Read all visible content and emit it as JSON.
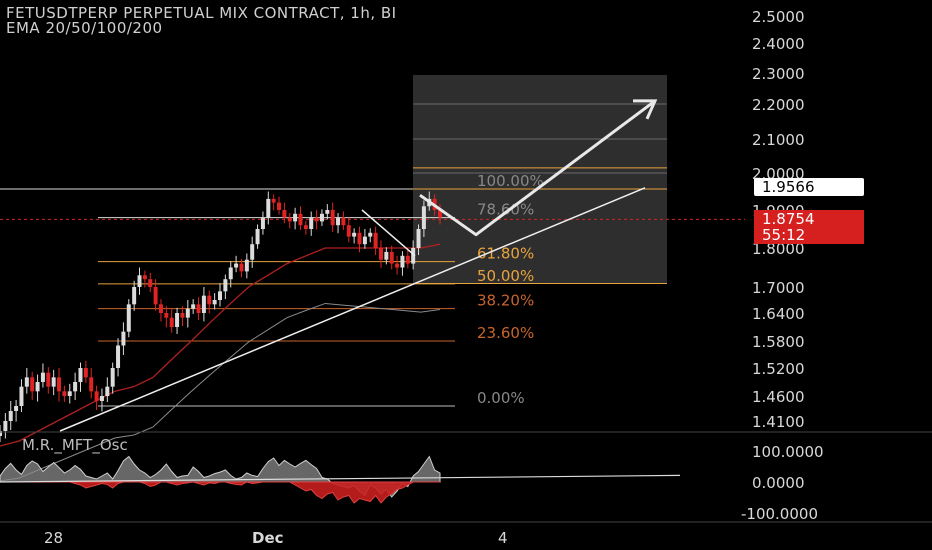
{
  "header": {
    "title": "FETUSDTPERP PERPETUAL MIX CONTRACT, 1h, BI",
    "subtitle": "EMA 20/50/100/200"
  },
  "price_tags": {
    "level": "1.9566",
    "last": "1.8754",
    "countdown": "55:12"
  },
  "colors": {
    "up": "#dcdcdc",
    "down": "#e02424",
    "fib_gold": "#e8a33c",
    "fib_orange": "#c8642c",
    "last_price_bg": "#d62020",
    "box": "#2e2e2e"
  },
  "chart_data": [
    {
      "type": "candlestick",
      "title": "FETUSDTPERP PERPETUAL MIX CONTRACT, 1h, BI",
      "subtitle": "EMA 20/50/100/200",
      "x_tick_labels": [
        "28",
        "Dec",
        "4"
      ],
      "y_tick_labels": [
        "2.5000",
        "2.4000",
        "2.3000",
        "2.2000",
        "2.1000",
        "2.0000",
        "1.9000",
        "1.8000",
        "1.7000",
        "1.6400",
        "1.5800",
        "1.5200",
        "1.4600",
        "1.4100"
      ],
      "ylim": [
        1.39,
        2.53
      ],
      "price_axis": [
        {
          "value": 2.5,
          "y": 16
        },
        {
          "value": 2.4,
          "y": 43
        },
        {
          "value": 2.3,
          "y": 73
        },
        {
          "value": 2.2,
          "y": 104
        },
        {
          "value": 2.1,
          "y": 139
        },
        {
          "value": 2.0,
          "y": 173
        },
        {
          "value": 1.9,
          "y": 210
        },
        {
          "value": 1.8,
          "y": 248
        },
        {
          "value": 1.7,
          "y": 287
        },
        {
          "value": 1.64,
          "y": 313
        },
        {
          "value": 1.58,
          "y": 341
        },
        {
          "value": 1.52,
          "y": 368
        },
        {
          "value": 1.46,
          "y": 396
        },
        {
          "value": 1.41,
          "y": 421
        }
      ],
      "series": [
        {
          "name": "close",
          "x_range": [
            0,
            440
          ],
          "values": [
            1.39,
            1.41,
            1.43,
            1.44,
            1.48,
            1.5,
            1.47,
            1.49,
            1.51,
            1.48,
            1.5,
            1.47,
            1.46,
            1.47,
            1.49,
            1.52,
            1.5,
            1.47,
            1.45,
            1.46,
            1.48,
            1.52,
            1.57,
            1.6,
            1.66,
            1.7,
            1.73,
            1.72,
            1.7,
            1.66,
            1.64,
            1.63,
            1.61,
            1.64,
            1.63,
            1.65,
            1.66,
            1.64,
            1.68,
            1.66,
            1.67,
            1.69,
            1.72,
            1.75,
            1.76,
            1.74,
            1.77,
            1.81,
            1.85,
            1.88,
            1.93,
            1.92,
            1.9,
            1.88,
            1.87,
            1.89,
            1.86,
            1.85,
            1.88,
            1.87,
            1.89,
            1.9,
            1.86,
            1.88,
            1.86,
            1.83,
            1.84,
            1.81,
            1.83,
            1.84,
            1.8,
            1.77,
            1.79,
            1.76,
            1.75,
            1.78,
            1.76,
            1.8,
            1.85,
            1.91,
            1.93,
            1.9,
            1.88
          ]
        },
        {
          "name": "ema",
          "x_range": [
            0,
            440
          ],
          "values": [
            1.36,
            1.37,
            1.39,
            1.41,
            1.43,
            1.45,
            1.47,
            1.48,
            1.5,
            1.54,
            1.58,
            1.62,
            1.66,
            1.7,
            1.73,
            1.76,
            1.78,
            1.8,
            1.8,
            1.8,
            1.8,
            1.8,
            1.8,
            1.81
          ]
        }
      ],
      "annotations": {
        "fib_levels": [
          {
            "label": "100.00%",
            "value": 1.9566
          },
          {
            "label": "78.60%",
            "value": 1.88
          },
          {
            "label": "61.80%",
            "value": 1.765
          },
          {
            "label": "50.00%",
            "value": 1.708
          },
          {
            "label": "38.20%",
            "value": 1.65
          },
          {
            "label": "23.60%",
            "value": 1.58
          },
          {
            "label": "0.00%",
            "value": 1.44
          }
        ],
        "projection_path_prices": [
          1.94,
          1.835,
          2.21
        ],
        "projection_box_range": [
          1.71,
          2.29
        ]
      }
    },
    {
      "type": "area",
      "title": "M.R._MFT_Osc",
      "y_tick_labels": [
        "100.0000",
        "0.0000",
        "-100.0000"
      ],
      "ylim": [
        -100,
        100
      ],
      "series": [
        {
          "name": "upper",
          "values": [
            20,
            45,
            62,
            40,
            25,
            55,
            70,
            60,
            35,
            50,
            65,
            48,
            30,
            40,
            55,
            42,
            20,
            15,
            10,
            20,
            30,
            10,
            38,
            70,
            85,
            60,
            40,
            30,
            15,
            25,
            40,
            60,
            35,
            15,
            20,
            22,
            50,
            35,
            15,
            20,
            28,
            33,
            40,
            22,
            10,
            15,
            30,
            22,
            18,
            45,
            68,
            80,
            55,
            72,
            60,
            50,
            62,
            72,
            58,
            45,
            15,
            10,
            -5,
            -10,
            -15,
            -20,
            -12,
            -30,
            -45,
            -10,
            -20,
            -40,
            -25,
            -50,
            -30,
            -5,
            -15,
            20,
            35,
            60,
            85,
            40,
            30
          ]
        },
        {
          "name": "lower",
          "values": [
            0,
            0,
            0,
            0,
            0,
            0,
            0,
            0,
            0,
            0,
            0,
            0,
            0,
            0,
            -5,
            -10,
            -20,
            -15,
            -10,
            -5,
            -8,
            -20,
            -5,
            0,
            0,
            0,
            0,
            -5,
            -15,
            -10,
            0,
            0,
            -5,
            -10,
            -5,
            -3,
            0,
            -5,
            -10,
            -3,
            -5,
            0,
            0,
            -5,
            -8,
            -10,
            0,
            -5,
            -3,
            0,
            0,
            0,
            0,
            0,
            0,
            -10,
            -20,
            -30,
            -25,
            -45,
            -55,
            -40,
            -35,
            -60,
            -50,
            -45,
            -70,
            -55,
            -60,
            -65,
            -45,
            -70,
            -50,
            -40,
            -25,
            -20,
            -10,
            0,
            0,
            0,
            0,
            0,
            0
          ]
        }
      ]
    }
  ]
}
